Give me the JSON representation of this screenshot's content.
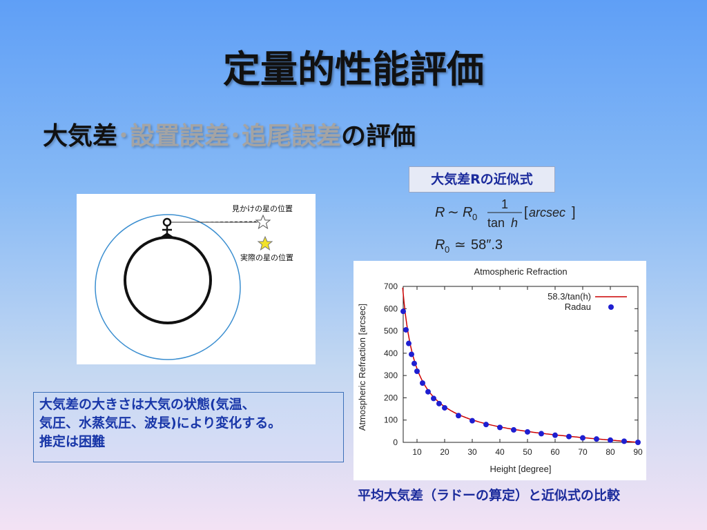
{
  "slide": {
    "title": "定量的性能評価",
    "subtitle": {
      "part1": "大気差",
      "sep1": "･",
      "part2": "設置誤差",
      "sep2": "･",
      "part3": "追尾誤差",
      "part4": "の評価"
    },
    "formula_label": "大気差Rの近似式",
    "note": {
      "line1": "大気差の大きさは大気の状態(気温、",
      "line2": "気圧、水蒸気圧、波長)により変化する。",
      "line3_prefix": "推定は",
      "line3_underlined": "困難"
    },
    "diagram": {
      "apparent_label": "見かけの星の位置",
      "actual_label": "実際の星の位置"
    },
    "caption": "平均大気差（ラドーの算定）と近似式の比較"
  },
  "chart_data": {
    "type": "scatter",
    "title": "Atmospheric Refraction",
    "xlabel": "Height [degree]",
    "ylabel": "Atmospheric Refraction [arcsec]",
    "xlim": [
      5,
      90
    ],
    "ylim": [
      0,
      700
    ],
    "xticks": [
      10,
      20,
      30,
      40,
      50,
      60,
      70,
      80,
      90
    ],
    "yticks": [
      0,
      100,
      200,
      300,
      400,
      500,
      600,
      700
    ],
    "grid": false,
    "legend_position": "top-right",
    "series": [
      {
        "name": "58.3/tan(h)",
        "kind": "line",
        "color": "#cc0000",
        "formula": "58.3/tan(h)"
      },
      {
        "name": "Radau",
        "kind": "points",
        "color": "#1f1fd0",
        "x": [
          5,
          6,
          7,
          8,
          9,
          10,
          12,
          14,
          16,
          18,
          20,
          25,
          30,
          35,
          40,
          45,
          50,
          55,
          60,
          65,
          70,
          75,
          80,
          85,
          90
        ],
        "y": [
          588,
          505,
          444,
          395,
          354,
          319,
          266,
          227,
          197,
          174,
          155,
          120,
          97,
          80,
          67,
          56,
          47,
          39,
          32,
          26,
          20,
          15,
          10,
          5,
          0
        ]
      }
    ]
  }
}
